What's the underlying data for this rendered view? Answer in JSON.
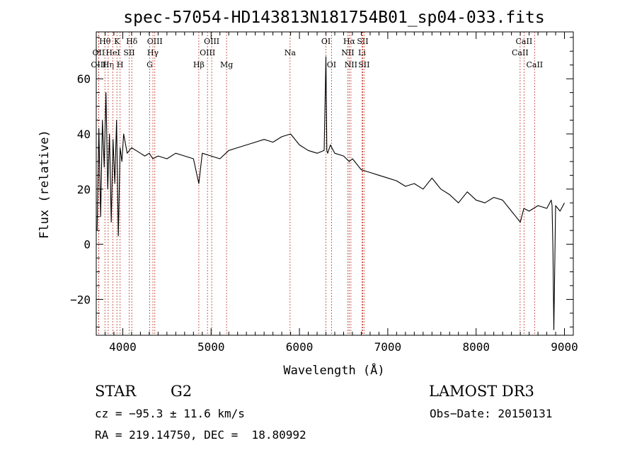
{
  "chart_data": {
    "type": "line",
    "title": "spec-57054-HD143813N181754B01_sp04-033.fits",
    "xlabel": "Wavelength (Å)",
    "ylabel": "Flux (relative)",
    "xlim": [
      3700,
      9100
    ],
    "ylim": [
      -33,
      77
    ],
    "x_ticks": [
      4000,
      5000,
      6000,
      7000,
      8000,
      9000
    ],
    "x_tick_labels": [
      "4000",
      "5000",
      "6000",
      "7000",
      "8000",
      "9000"
    ],
    "y_ticks": [
      -20,
      0,
      20,
      40,
      60
    ],
    "y_tick_labels": [
      "−20",
      "0",
      "20",
      "40",
      "60"
    ],
    "grid": false,
    "series": [
      {
        "name": "flux",
        "x": [
          3710,
          3730,
          3750,
          3770,
          3790,
          3810,
          3830,
          3850,
          3870,
          3890,
          3910,
          3930,
          3950,
          3970,
          3990,
          4010,
          4050,
          4100,
          4150,
          4200,
          4250,
          4300,
          4340,
          4400,
          4500,
          4600,
          4700,
          4800,
          4861,
          4900,
          5000,
          5100,
          5200,
          5300,
          5400,
          5500,
          5600,
          5700,
          5800,
          5900,
          6000,
          6100,
          6200,
          6280,
          6300,
          6310,
          6320,
          6350,
          6400,
          6500,
          6563,
          6600,
          6700,
          6800,
          6900,
          7000,
          7100,
          7200,
          7300,
          7400,
          7500,
          7550,
          7600,
          7700,
          7800,
          7900,
          8000,
          8100,
          8200,
          8300,
          8400,
          8450,
          8500,
          8540,
          8600,
          8700,
          8800,
          8850,
          8860,
          8870,
          8880,
          8900,
          8950,
          9000
        ],
        "values": [
          5,
          42,
          10,
          45,
          28,
          55,
          20,
          40,
          8,
          38,
          22,
          45,
          3,
          35,
          30,
          40,
          33,
          35,
          34,
          33,
          32,
          33,
          31,
          32,
          31,
          33,
          32,
          31,
          22,
          33,
          32,
          31,
          34,
          35,
          36,
          37,
          38,
          37,
          39,
          40,
          36,
          34,
          33,
          34,
          68,
          34,
          33,
          36,
          33,
          32,
          30,
          31,
          27,
          26,
          25,
          24,
          23,
          21,
          22,
          20,
          24,
          22,
          20,
          18,
          15,
          19,
          16,
          15,
          17,
          16,
          12,
          10,
          8,
          13,
          12,
          14,
          13,
          16,
          14,
          -3,
          -31,
          14,
          12,
          15
        ]
      }
    ],
    "lines": [
      {
        "label": "Hθ",
        "x": 3798,
        "row": 1
      },
      {
        "label": "OII",
        "x": 3727,
        "row": 2
      },
      {
        "label": "OIII",
        "x": 3727,
        "row": 3
      },
      {
        "label": "Hη",
        "x": 3835,
        "row": 3
      },
      {
        "label": "K",
        "x": 3934,
        "row": 1
      },
      {
        "label": "HeI",
        "x": 3889,
        "row": 2
      },
      {
        "label": "H",
        "x": 3970,
        "row": 3
      },
      {
        "label": "Hδ",
        "x": 4102,
        "row": 1
      },
      {
        "label": "SII",
        "x": 4072,
        "row": 2
      },
      {
        "label": "OIII",
        "x": 4363,
        "row": 1
      },
      {
        "label": "Hγ",
        "x": 4341,
        "row": 2
      },
      {
        "label": "G",
        "x": 4305,
        "row": 3
      },
      {
        "label": "Hβ",
        "x": 4861,
        "row": 3
      },
      {
        "label": "OIII",
        "x": 5007,
        "row": 1
      },
      {
        "label": "OIII",
        "x": 4959,
        "row": 2
      },
      {
        "label": "Mg",
        "x": 5175,
        "row": 3
      },
      {
        "label": "Na",
        "x": 5894,
        "row": 2
      },
      {
        "label": "OI",
        "x": 6300,
        "row": 1
      },
      {
        "label": "OI",
        "x": 6363,
        "row": 3
      },
      {
        "label": "Hα",
        "x": 6563,
        "row": 1
      },
      {
        "label": "SII",
        "x": 6716,
        "row": 1
      },
      {
        "label": "NII",
        "x": 6548,
        "row": 2
      },
      {
        "label": "Li",
        "x": 6708,
        "row": 2
      },
      {
        "label": "NII",
        "x": 6583,
        "row": 3
      },
      {
        "label": "SII",
        "x": 6731,
        "row": 3
      },
      {
        "label": "CaII",
        "x": 8542,
        "row": 1
      },
      {
        "label": "CaII",
        "x": 8498,
        "row": 2
      },
      {
        "label": "CaII",
        "x": 8662,
        "row": 3
      }
    ]
  },
  "info": {
    "object_class": "STAR",
    "subclass": "G2",
    "survey": "LAMOST DR3",
    "velocity": "cz = −95.3 ± 11.6 km/s",
    "obs_date": "Obs−Date: 20150131",
    "coords": "RA = 219.14750, DEC =  18.80992"
  }
}
